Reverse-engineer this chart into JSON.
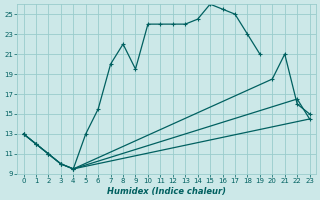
{
  "title": "",
  "xlabel": "Humidex (Indice chaleur)",
  "bg_color": "#cce8e8",
  "line_color": "#006060",
  "grid_color": "#99cccc",
  "xlim": [
    -0.5,
    23.5
  ],
  "ylim": [
    9,
    26
  ],
  "xticks": [
    0,
    1,
    2,
    3,
    4,
    5,
    6,
    7,
    8,
    9,
    10,
    11,
    12,
    13,
    14,
    15,
    16,
    17,
    18,
    19,
    20,
    21,
    22,
    23
  ],
  "yticks": [
    9,
    11,
    13,
    15,
    17,
    19,
    21,
    23,
    25
  ],
  "line1_x": [
    0,
    1,
    2,
    3,
    4,
    5,
    6,
    7,
    8,
    9,
    10,
    11,
    12,
    13,
    14,
    15,
    16,
    17,
    18,
    19,
    20,
    21,
    22,
    23
  ],
  "line1_y": [
    13,
    12,
    11,
    10,
    9.5,
    13,
    15.5,
    20,
    22,
    19.5,
    24,
    24,
    24,
    24,
    24.5,
    26,
    25.5,
    25,
    23,
    21,
    null,
    null,
    null,
    null
  ],
  "line2_x": [
    0,
    1,
    2,
    3,
    4,
    20,
    21,
    22,
    23
  ],
  "line2_y": [
    13,
    12,
    11,
    10,
    9.5,
    18.5,
    21,
    16,
    15
  ],
  "line3_x": [
    0,
    1,
    2,
    3,
    4,
    22,
    23
  ],
  "line3_y": [
    13,
    12,
    11,
    10,
    9.5,
    16.5,
    14.5
  ],
  "line4_x": [
    4,
    23
  ],
  "line4_y": [
    9.5,
    14.5
  ]
}
